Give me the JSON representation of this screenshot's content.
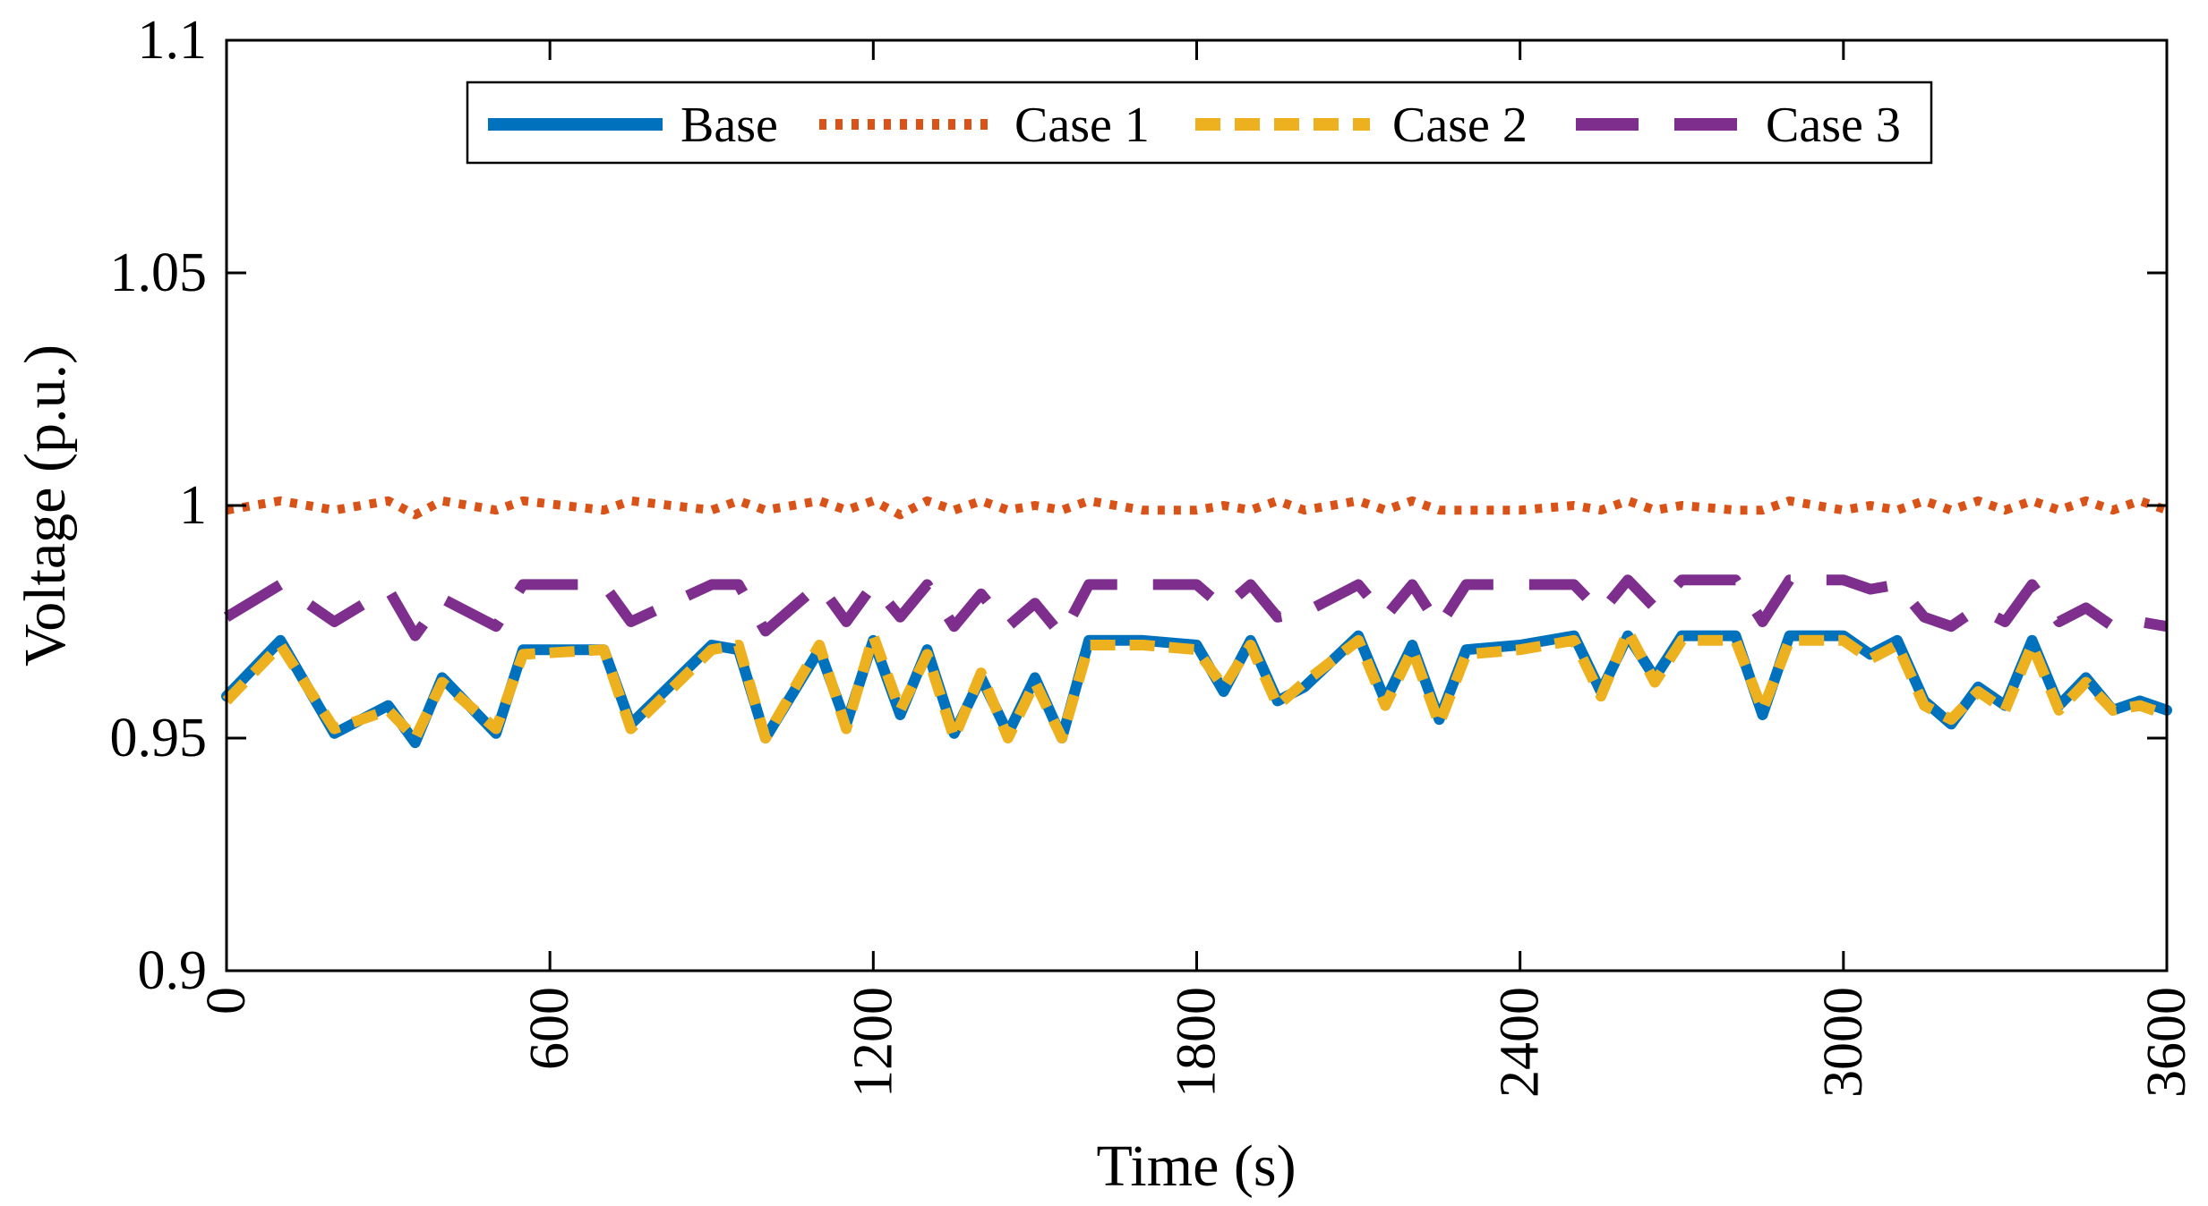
{
  "chart_data": {
    "type": "line",
    "title": "",
    "xlabel": "Time (s)",
    "ylabel": "Voltage (p.u.)",
    "xlim": [
      0,
      3600
    ],
    "ylim": [
      0.9,
      1.1
    ],
    "xticks": [
      0,
      600,
      1200,
      1800,
      2400,
      3000,
      3600
    ],
    "xtick_labels": [
      "0",
      "600",
      "1200",
      "1800",
      "2400",
      "3000",
      "3600"
    ],
    "yticks": [
      0.9,
      0.95,
      1.0,
      1.05,
      1.1
    ],
    "ytick_labels": [
      "0.9",
      "0.95",
      "1",
      "1.05",
      "1.1"
    ],
    "grid": false,
    "legend_position": "top-center",
    "x": [
      0,
      100,
      200,
      300,
      350,
      400,
      500,
      550,
      700,
      750,
      900,
      950,
      1000,
      1100,
      1150,
      1200,
      1250,
      1300,
      1350,
      1400,
      1450,
      1500,
      1550,
      1600,
      1700,
      1800,
      1850,
      1900,
      1950,
      2000,
      2100,
      2150,
      2200,
      2250,
      2300,
      2400,
      2500,
      2550,
      2600,
      2650,
      2700,
      2800,
      2850,
      2900,
      3000,
      3050,
      3100,
      3150,
      3200,
      3250,
      3300,
      3350,
      3400,
      3450,
      3500,
      3550,
      3600
    ],
    "series": [
      {
        "name": "Base",
        "color": "#0072BD",
        "style": "solid",
        "values": [
          0.959,
          0.971,
          0.951,
          0.957,
          0.949,
          0.963,
          0.951,
          0.969,
          0.969,
          0.953,
          0.97,
          0.969,
          0.95,
          0.969,
          0.953,
          0.971,
          0.955,
          0.969,
          0.951,
          0.963,
          0.951,
          0.963,
          0.95,
          0.971,
          0.971,
          0.97,
          0.96,
          0.971,
          0.958,
          0.961,
          0.972,
          0.958,
          0.97,
          0.954,
          0.969,
          0.97,
          0.972,
          0.96,
          0.972,
          0.963,
          0.972,
          0.972,
          0.955,
          0.972,
          0.972,
          0.968,
          0.971,
          0.958,
          0.953,
          0.961,
          0.957,
          0.971,
          0.957,
          0.963,
          0.956,
          0.958,
          0.956
        ]
      },
      {
        "name": "Case 1",
        "color": "#D95319",
        "style": "dotted",
        "values": [
          0.999,
          1.001,
          0.999,
          1.001,
          0.998,
          1.001,
          0.999,
          1.001,
          0.999,
          1.001,
          0.999,
          1.001,
          0.999,
          1.001,
          0.999,
          1.001,
          0.998,
          1.001,
          0.999,
          1.001,
          0.999,
          1.0,
          0.999,
          1.001,
          0.999,
          0.999,
          1.0,
          0.999,
          1.001,
          0.999,
          1.001,
          0.999,
          1.001,
          0.999,
          0.999,
          0.999,
          1.0,
          0.999,
          1.001,
          0.999,
          1.0,
          0.999,
          0.999,
          1.001,
          0.999,
          1.0,
          0.999,
          1.001,
          0.999,
          1.001,
          0.999,
          1.001,
          0.999,
          1.001,
          0.999,
          1.001,
          0.999
        ]
      },
      {
        "name": "Case 2",
        "color": "#EDB120",
        "style": "dashed",
        "values": [
          0.958,
          0.97,
          0.952,
          0.956,
          0.95,
          0.962,
          0.952,
          0.968,
          0.969,
          0.952,
          0.969,
          0.97,
          0.95,
          0.97,
          0.952,
          0.972,
          0.956,
          0.968,
          0.95,
          0.964,
          0.95,
          0.962,
          0.95,
          0.97,
          0.97,
          0.969,
          0.961,
          0.97,
          0.957,
          0.962,
          0.971,
          0.957,
          0.969,
          0.953,
          0.968,
          0.969,
          0.971,
          0.959,
          0.973,
          0.962,
          0.971,
          0.971,
          0.956,
          0.971,
          0.971,
          0.967,
          0.97,
          0.957,
          0.954,
          0.96,
          0.956,
          0.97,
          0.956,
          0.962,
          0.956,
          0.957,
          0.955
        ]
      },
      {
        "name": "Case 3",
        "color": "#7E2F8E",
        "style": "dashed",
        "values": [
          0.976,
          0.983,
          0.975,
          0.982,
          0.972,
          0.98,
          0.974,
          0.983,
          0.983,
          0.975,
          0.983,
          0.983,
          0.973,
          0.983,
          0.975,
          0.983,
          0.976,
          0.983,
          0.974,
          0.981,
          0.974,
          0.979,
          0.972,
          0.983,
          0.983,
          0.983,
          0.978,
          0.983,
          0.976,
          0.977,
          0.983,
          0.976,
          0.983,
          0.974,
          0.983,
          0.983,
          0.983,
          0.977,
          0.984,
          0.978,
          0.984,
          0.984,
          0.975,
          0.984,
          0.984,
          0.982,
          0.983,
          0.976,
          0.974,
          0.978,
          0.975,
          0.983,
          0.975,
          0.978,
          0.974,
          0.975,
          0.974
        ]
      }
    ]
  }
}
